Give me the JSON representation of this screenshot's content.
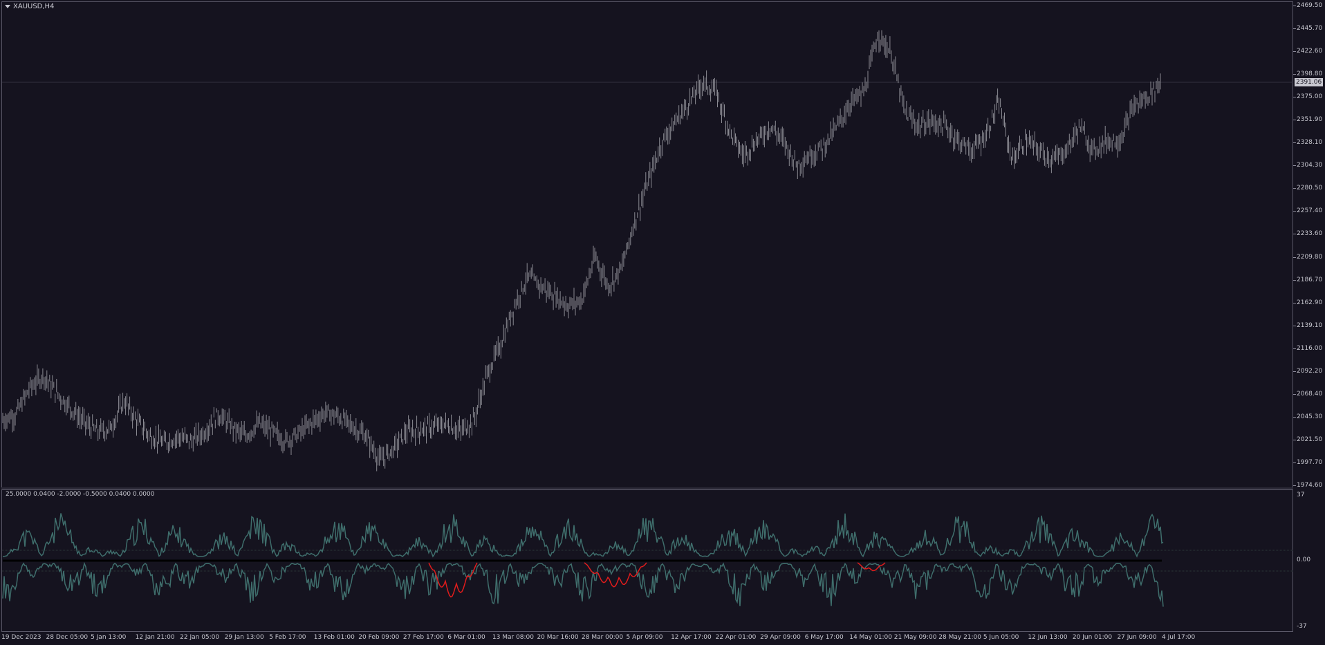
{
  "chart": {
    "symbol": "XAUUSD,H4",
    "current_price": "2391.06",
    "price_ticks": [
      "2469.50",
      "2445.70",
      "2422.60",
      "2398.80",
      "2375.00",
      "2351.90",
      "2328.10",
      "2304.30",
      "2280.50",
      "2257.40",
      "2233.60",
      "2209.80",
      "2186.70",
      "2162.90",
      "2139.10",
      "2116.00",
      "2092.20",
      "2068.40",
      "2045.30",
      "2021.50",
      "1997.70",
      "1974.60"
    ],
    "indicator_label": "25.0000 0.0400 -2.0000 -0.5000 0.0400 0.0000",
    "indicator_ticks": [
      "37",
      "0.00",
      "-37"
    ],
    "time_labels": [
      "19 Dec 2023",
      "28 Dec 05:00",
      "5 Jan 13:00",
      "12 Jan 21:00",
      "22 Jan 05:00",
      "29 Jan 13:00",
      "5 Feb 17:00",
      "13 Feb 01:00",
      "20 Feb 09:00",
      "27 Feb 17:00",
      "6 Mar 01:00",
      "13 Mar 08:00",
      "20 Mar 16:00",
      "28 Mar 00:00",
      "5 Apr 09:00",
      "12 Apr 17:00",
      "22 Apr 01:00",
      "29 Apr 09:00",
      "6 May 17:00",
      "14 May 01:00",
      "21 May 09:00",
      "28 May 21:00",
      "5 Jun 05:00",
      "12 Jun 13:00",
      "20 Jun 01:00",
      "27 Jun 09:00",
      "4 Jul 17:00"
    ],
    "colors": {
      "background": "#15131f",
      "bars": "#8a8a92",
      "indicator_line": "#3f6e6c",
      "indicator_alert": "#e01c1c",
      "zero_line": "#000000",
      "grid_level": "#2a3a3a"
    }
  },
  "chart_data": {
    "type": "line",
    "title": "XAUUSD,H4",
    "ylim": [
      1974.6,
      2469.5
    ],
    "series": [
      {
        "values": [
          2042,
          2048,
          2075,
          2088,
          2070,
          2055,
          2040,
          2030,
          2033,
          2062,
          2040,
          2025,
          2018,
          2025,
          2020,
          2030,
          2048,
          2035,
          2025,
          2038,
          2030,
          2020,
          2028,
          2040,
          2050,
          2045,
          2035,
          2025,
          2000,
          2012,
          2030,
          2032,
          2035,
          2038,
          2030,
          2042,
          2090,
          2120,
          2160,
          2190,
          2180,
          2170,
          2160,
          2166,
          2210,
          2180,
          2200,
          2250,
          2290,
          2330,
          2350,
          2370,
          2390,
          2380,
          2340,
          2315,
          2330,
          2345,
          2330,
          2305,
          2315,
          2325,
          2345,
          2370,
          2380,
          2440,
          2420,
          2360,
          2345,
          2350,
          2345,
          2330,
          2320,
          2335,
          2370,
          2310,
          2330,
          2320,
          2310,
          2320,
          2345,
          2320,
          2330,
          2330,
          2365,
          2375,
          2390
        ]
      }
    ]
  }
}
